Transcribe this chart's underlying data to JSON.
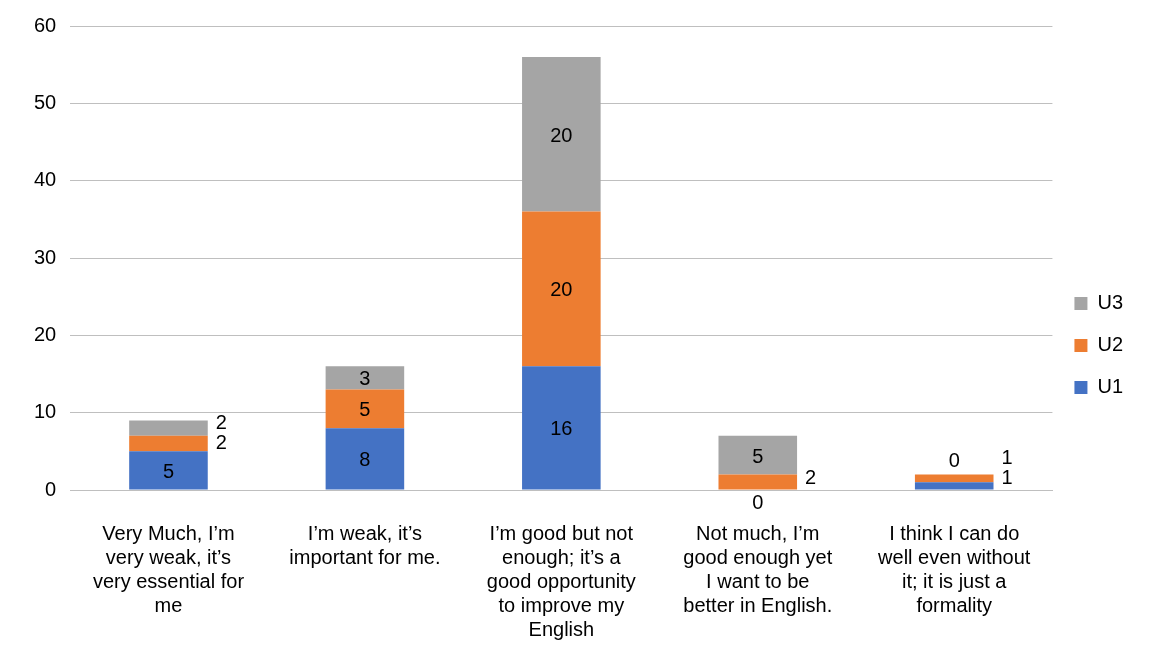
{
  "chart_data": {
    "type": "bar",
    "stacked": true,
    "categories": [
      "Very Much, I’m very weak, it’s very essential for me",
      "I’m weak, it’s important for me.",
      "I’m good but not enough; it’s a good opportunity to improve my English",
      "Not much, I’m good enough yet I want to be better in English.",
      "I think I can do well even without it; it is just a formality"
    ],
    "series": [
      {
        "name": "U1",
        "color": "#4472c4",
        "values": [
          5,
          8,
          16,
          0,
          1
        ]
      },
      {
        "name": "U2",
        "color": "#ed7d31",
        "values": [
          2,
          5,
          20,
          2,
          1
        ]
      },
      {
        "name": "U3",
        "color": "#a5a5a5",
        "values": [
          2,
          3,
          20,
          5,
          0
        ]
      }
    ],
    "ylim": [
      0,
      60
    ],
    "yticks": [
      0,
      10,
      20,
      30,
      40,
      50,
      60
    ],
    "grid": "y",
    "legend": "right",
    "data_labels": true
  }
}
